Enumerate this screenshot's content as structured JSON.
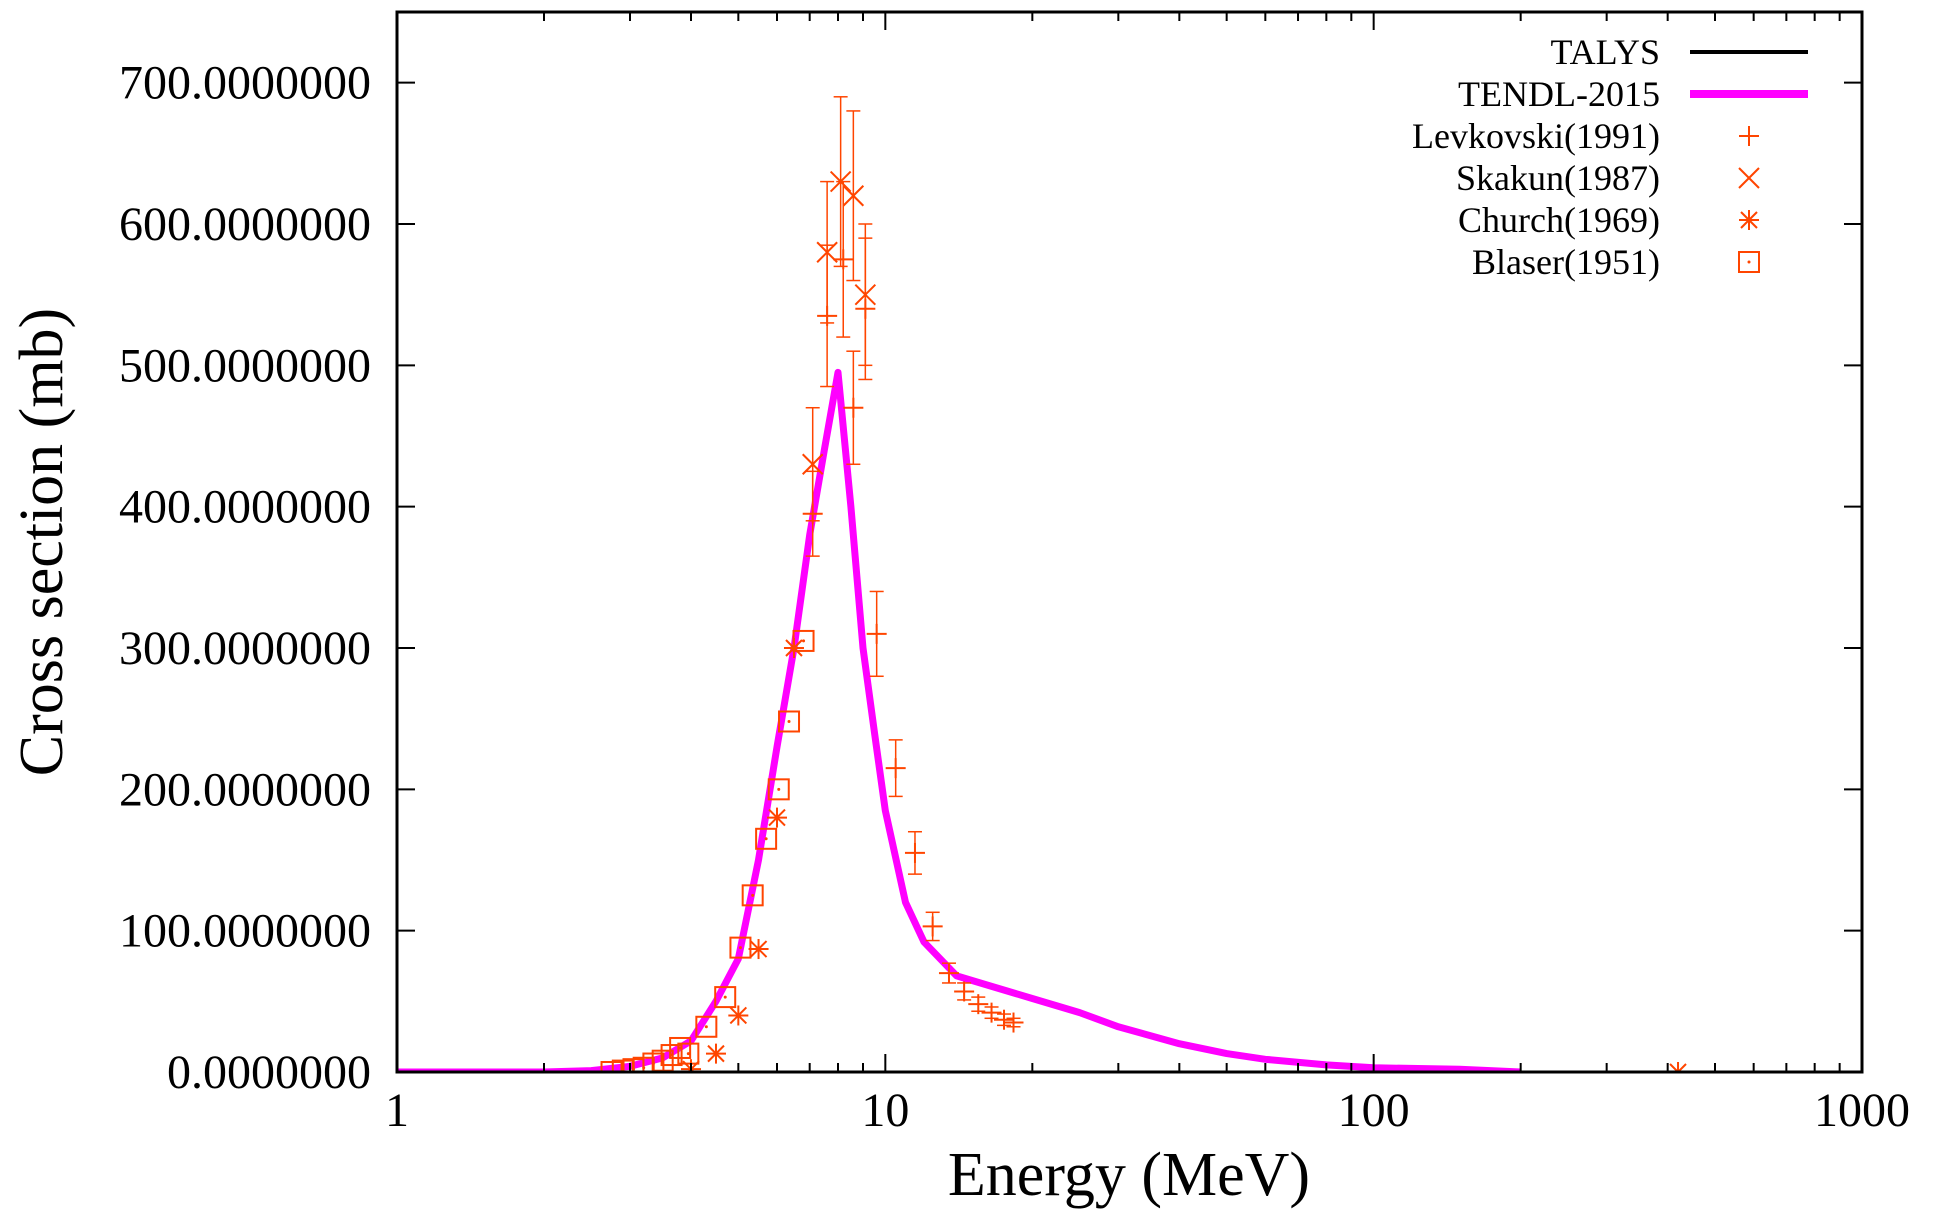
{
  "chart_data": {
    "type": "scatter",
    "xlabel": "Energy (MeV)",
    "ylabel": "Cross section (mb)",
    "x_scale": "log",
    "xlim": [
      1,
      1000
    ],
    "ylim": [
      0,
      750
    ],
    "x_ticks": [
      1,
      10,
      100,
      1000
    ],
    "x_tick_labels": [
      "1",
      "10",
      "100",
      "1000"
    ],
    "y_ticks": [
      0,
      100,
      200,
      300,
      400,
      500,
      600,
      700
    ],
    "y_tick_labels": [
      "0.0000000",
      "100.0000000",
      "200.0000000",
      "300.0000000",
      "400.0000000",
      "500.0000000",
      "600.0000000",
      "700.0000000"
    ],
    "legend_position": "top-right",
    "grid": false,
    "series": [
      {
        "name": "TALYS",
        "kind": "line",
        "color": "#000000",
        "x": [],
        "y": []
      },
      {
        "name": "TENDL-2015",
        "kind": "line",
        "color": "#ff00ff",
        "x": [
          1,
          2,
          2.5,
          3,
          3.5,
          4,
          4.5,
          5,
          5.5,
          6,
          6.5,
          7,
          7.5,
          8,
          8.5,
          9,
          9.5,
          10,
          11,
          12,
          14,
          16,
          20,
          25,
          30,
          40,
          50,
          60,
          80,
          100,
          150,
          200
        ],
        "y": [
          0,
          0,
          1,
          4,
          10,
          22,
          50,
          80,
          150,
          230,
          300,
          380,
          440,
          495,
          400,
          300,
          240,
          185,
          120,
          92,
          68,
          62,
          52,
          42,
          32,
          20,
          13,
          9,
          5,
          3,
          2,
          0
        ]
      },
      {
        "name": "Levkovski(1991)",
        "kind": "points",
        "marker": "plus",
        "color": "#ff4500",
        "x": [
          7.1,
          7.6,
          8.2,
          8.6,
          9.1,
          9.6,
          10.5,
          11.5,
          12.5,
          13.5,
          14.5,
          15.5,
          16.5,
          17.5,
          18.3
        ],
        "y": [
          395,
          535,
          575,
          470,
          540,
          310,
          215,
          155,
          103,
          70,
          57,
          48,
          42,
          37,
          35
        ],
        "yerr": [
          30,
          50,
          55,
          40,
          50,
          30,
          20,
          15,
          10,
          7,
          6,
          5,
          4,
          4,
          3
        ]
      },
      {
        "name": "Skakun(1987)",
        "kind": "points",
        "marker": "cross",
        "color": "#ff4500",
        "x": [
          7.1,
          7.6,
          8.1,
          8.6,
          9.1
        ],
        "y": [
          430,
          580,
          630,
          620,
          550
        ],
        "yerr": [
          40,
          50,
          60,
          60,
          50
        ]
      },
      {
        "name": "Church(1969)",
        "kind": "points",
        "marker": "asterisk",
        "color": "#ff4500",
        "x": [
          4.0,
          4.5,
          5.0,
          5.5,
          6.0,
          6.5,
          420
        ],
        "y": [
          2,
          13,
          40,
          87,
          180,
          300,
          0
        ]
      },
      {
        "name": "Blaser(1951)",
        "kind": "points",
        "marker": "box",
        "color": "#ff4500",
        "x": [
          2.75,
          2.9,
          3.05,
          3.2,
          3.35,
          3.5,
          3.65,
          3.8,
          3.95,
          4.3,
          4.7,
          5.05,
          5.35,
          5.7,
          6.05,
          6.35,
          6.8
        ],
        "y": [
          0,
          1,
          2,
          3,
          6,
          8,
          12,
          17,
          13,
          32,
          53,
          88,
          125,
          165,
          200,
          248,
          305
        ]
      }
    ]
  }
}
